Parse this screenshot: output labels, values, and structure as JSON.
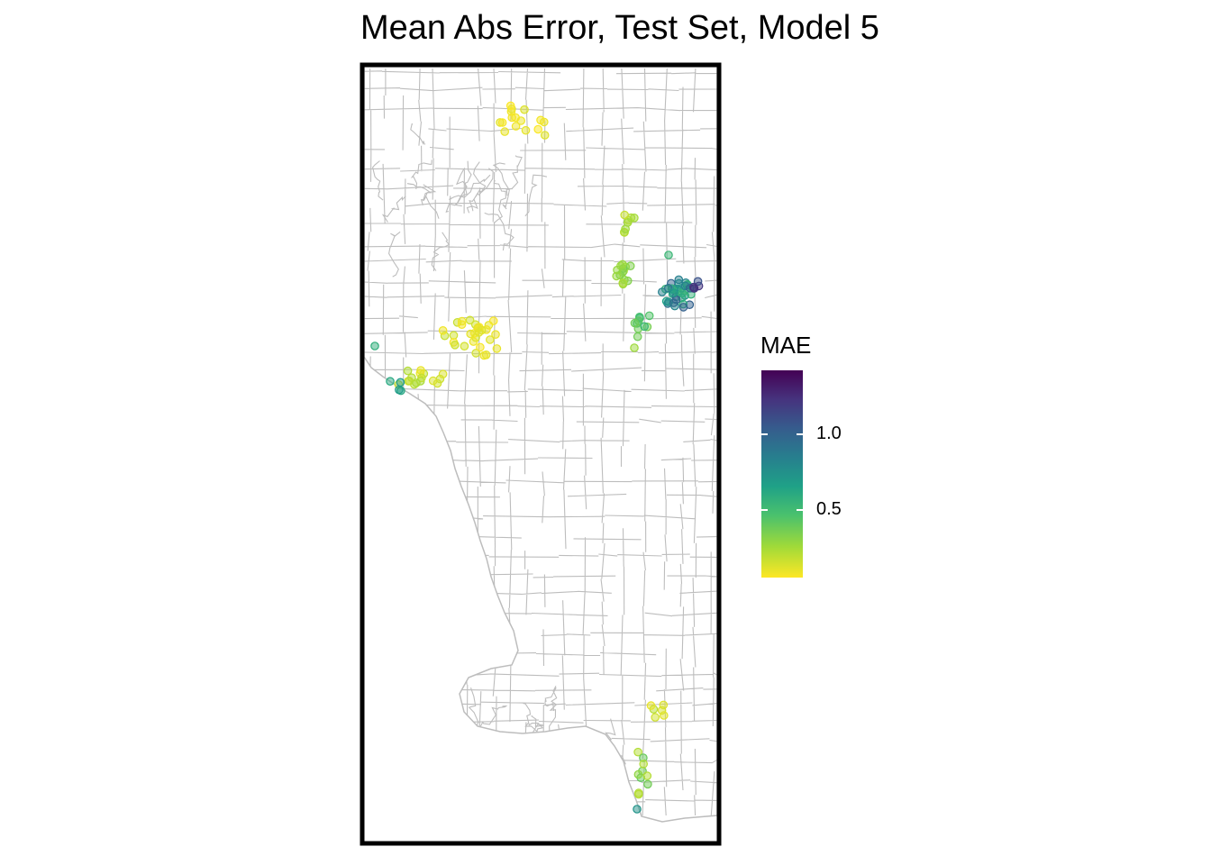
{
  "title": "Mean Abs Error, Test Set, Model 5",
  "legend": {
    "title": "MAE",
    "palette": [
      "#440154",
      "#46337e",
      "#365c8d",
      "#277f8e",
      "#1fa187",
      "#4ac16d",
      "#a0da39",
      "#fde725"
    ],
    "range": [
      0.1,
      1.45
    ],
    "ticks": [
      {
        "label": "1.0",
        "value": 1.0
      },
      {
        "label": "0.5",
        "value": 0.5
      }
    ]
  },
  "map": {
    "boundary_color": "#bdbdbd",
    "frame_color": "#000000"
  }
}
